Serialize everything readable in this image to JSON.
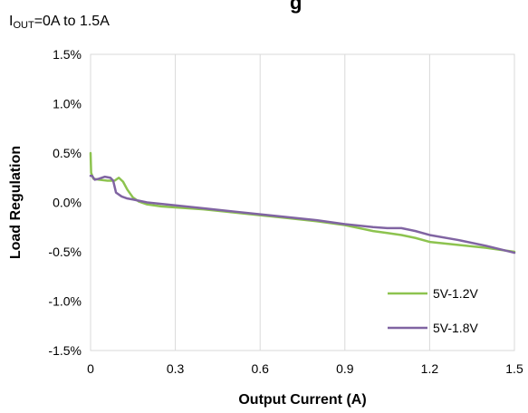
{
  "chart_data": {
    "type": "line",
    "title": "",
    "title_fragment": "g",
    "subtitle": {
      "prefix": "I",
      "sub": "OUT",
      "suffix": "=0A to 1.5A"
    },
    "xlabel": "Output Current (A)",
    "ylabel": "Load Regulation",
    "xlim": [
      0,
      1.5
    ],
    "ylim": [
      -1.5,
      1.5
    ],
    "x_ticks": [
      0,
      0.3,
      0.6,
      0.9,
      1.2,
      1.5
    ],
    "x_tick_labels": [
      "0",
      "0.3",
      "0.6",
      "0.9",
      "1.2",
      "1.5"
    ],
    "y_ticks": [
      1.5,
      1.0,
      0.5,
      0.0,
      -0.5,
      -1.0,
      -1.5
    ],
    "y_tick_labels": [
      "1.5%",
      "1.0%",
      "0.5%",
      "0.0%",
      "-0.5%",
      "-1.0%",
      "-1.5%"
    ],
    "grid": "vertical",
    "legend_position": "bottom-right",
    "series": [
      {
        "name": "5V-1.2V",
        "color": "#8DC34F",
        "points": [
          [
            0.0,
            0.5
          ],
          [
            0.002,
            0.3
          ],
          [
            0.01,
            0.24
          ],
          [
            0.03,
            0.23
          ],
          [
            0.06,
            0.22
          ],
          [
            0.085,
            0.22
          ],
          [
            0.1,
            0.25
          ],
          [
            0.115,
            0.21
          ],
          [
            0.13,
            0.13
          ],
          [
            0.15,
            0.05
          ],
          [
            0.17,
            0.01
          ],
          [
            0.2,
            -0.02
          ],
          [
            0.25,
            -0.04
          ],
          [
            0.3,
            -0.05
          ],
          [
            0.4,
            -0.07
          ],
          [
            0.5,
            -0.1
          ],
          [
            0.6,
            -0.13
          ],
          [
            0.7,
            -0.16
          ],
          [
            0.8,
            -0.19
          ],
          [
            0.9,
            -0.23
          ],
          [
            1.0,
            -0.29
          ],
          [
            1.05,
            -0.31
          ],
          [
            1.1,
            -0.33
          ],
          [
            1.15,
            -0.36
          ],
          [
            1.2,
            -0.4
          ],
          [
            1.3,
            -0.43
          ],
          [
            1.4,
            -0.46
          ],
          [
            1.5,
            -0.5
          ]
        ]
      },
      {
        "name": "5V-1.8V",
        "color": "#8064A2",
        "points": [
          [
            0.0,
            0.27
          ],
          [
            0.005,
            0.27
          ],
          [
            0.015,
            0.23
          ],
          [
            0.03,
            0.24
          ],
          [
            0.05,
            0.26
          ],
          [
            0.07,
            0.25
          ],
          [
            0.08,
            0.22
          ],
          [
            0.09,
            0.1
          ],
          [
            0.11,
            0.06
          ],
          [
            0.13,
            0.04
          ],
          [
            0.15,
            0.03
          ],
          [
            0.2,
            0.0
          ],
          [
            0.3,
            -0.03
          ],
          [
            0.4,
            -0.06
          ],
          [
            0.5,
            -0.09
          ],
          [
            0.6,
            -0.12
          ],
          [
            0.7,
            -0.15
          ],
          [
            0.8,
            -0.18
          ],
          [
            0.9,
            -0.22
          ],
          [
            1.0,
            -0.25
          ],
          [
            1.05,
            -0.26
          ],
          [
            1.1,
            -0.26
          ],
          [
            1.15,
            -0.29
          ],
          [
            1.2,
            -0.33
          ],
          [
            1.3,
            -0.38
          ],
          [
            1.4,
            -0.44
          ],
          [
            1.5,
            -0.51
          ]
        ]
      }
    ]
  }
}
